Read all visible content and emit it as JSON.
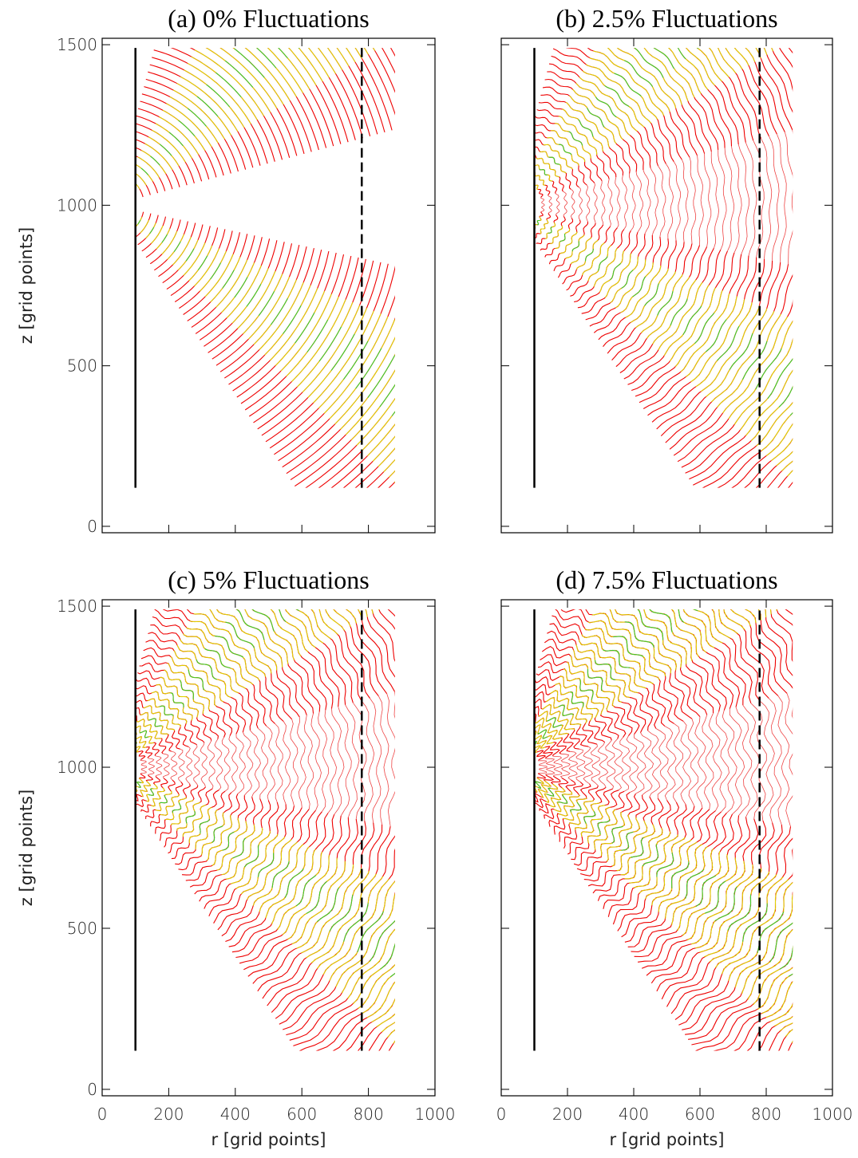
{
  "chart_data": [
    {
      "type": "contour",
      "title": "(a) 0% Fluctuations",
      "ylabel": "z [grid points]",
      "xlim": [
        0,
        1000
      ],
      "ylim": [
        -20,
        1520
      ],
      "xticks": [
        0,
        200,
        400,
        600,
        800,
        1000
      ],
      "yticks": [
        0,
        500,
        1000,
        1500
      ],
      "show_xtick_labels": false,
      "show_ytick_labels": true
    },
    {
      "type": "contour",
      "title": "(b) 2.5% Fluctuations",
      "xlim": [
        0,
        1000
      ],
      "ylim": [
        -20,
        1520
      ],
      "xticks": [
        0,
        200,
        400,
        600,
        800,
        1000
      ],
      "yticks": [
        0,
        500,
        1000,
        1500
      ],
      "show_xtick_labels": false,
      "show_ytick_labels": false
    },
    {
      "type": "contour",
      "title": "(c) 5% Fluctuations",
      "ylabel": "z [grid points]",
      "xlabel": "r [grid points]",
      "xlim": [
        0,
        1000
      ],
      "ylim": [
        -20,
        1520
      ],
      "xticks": [
        0,
        200,
        400,
        600,
        800,
        1000
      ],
      "yticks": [
        0,
        500,
        1000,
        1500
      ],
      "show_xtick_labels": true,
      "show_ytick_labels": true
    },
    {
      "type": "contour",
      "title": "(d) 7.5% Fluctuations",
      "xlabel": "r [grid points]",
      "xlim": [
        0,
        1000
      ],
      "ylim": [
        -20,
        1520
      ],
      "xticks": [
        0,
        200,
        400,
        600,
        800,
        1000
      ],
      "yticks": [
        0,
        500,
        1000,
        1500
      ],
      "show_xtick_labels": true,
      "show_ytick_labels": false
    }
  ]
}
